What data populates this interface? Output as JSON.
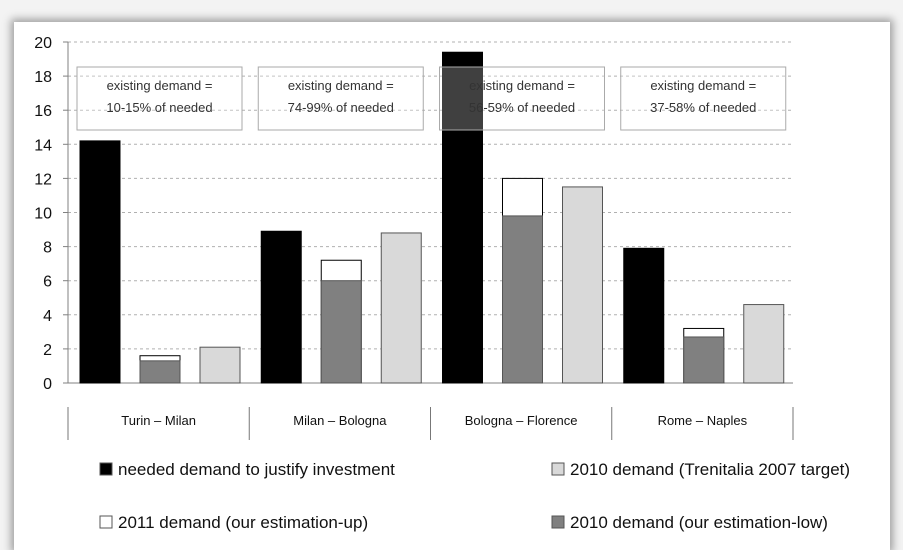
{
  "chart_data": {
    "type": "bar",
    "categories": [
      "Turin – Milan",
      "Milan – Bologna",
      "Bologna – Florence",
      "Rome – Naples"
    ],
    "ylim": [
      0,
      20
    ],
    "yticks": [
      0,
      2,
      4,
      6,
      8,
      10,
      12,
      14,
      16,
      18,
      20
    ],
    "grid": true,
    "series": [
      {
        "name": "needed demand to justify investment",
        "color": "#000000",
        "values": [
          14.2,
          8.9,
          19.4,
          7.9
        ]
      },
      {
        "name": "2010 demand (our estimation-low)",
        "color": "#808080",
        "values": [
          1.3,
          6.0,
          9.8,
          2.7
        ]
      },
      {
        "name": "2011 demand (our estimation-up)",
        "color": "#ffffff",
        "values": [
          1.6,
          7.2,
          12.0,
          3.2
        ]
      },
      {
        "name": "2010 demand (Trenitalia 2007 target)",
        "color": "#d9d9d9",
        "values": [
          2.1,
          8.8,
          11.5,
          4.6
        ]
      }
    ],
    "annotations": [
      {
        "line1": "existing demand =",
        "line2": "10-15% of needed"
      },
      {
        "line1": "existing demand =",
        "line2": "74-99% of needed"
      },
      {
        "line1": "existing demand =",
        "line2": "56-59% of needed"
      },
      {
        "line1": "existing demand =",
        "line2": "37-58% of needed"
      }
    ],
    "legend": [
      {
        "label": "needed demand to justify investment",
        "color": "#000000"
      },
      {
        "label": "2010 demand (Trenitalia 2007 target)",
        "color": "#d9d9d9"
      },
      {
        "label": "2011 demand (our estimation-up)",
        "color": "#ffffff"
      },
      {
        "label": "2010 demand (our estimation-low)",
        "color": "#808080"
      }
    ],
    "legend_position": "bottom"
  }
}
